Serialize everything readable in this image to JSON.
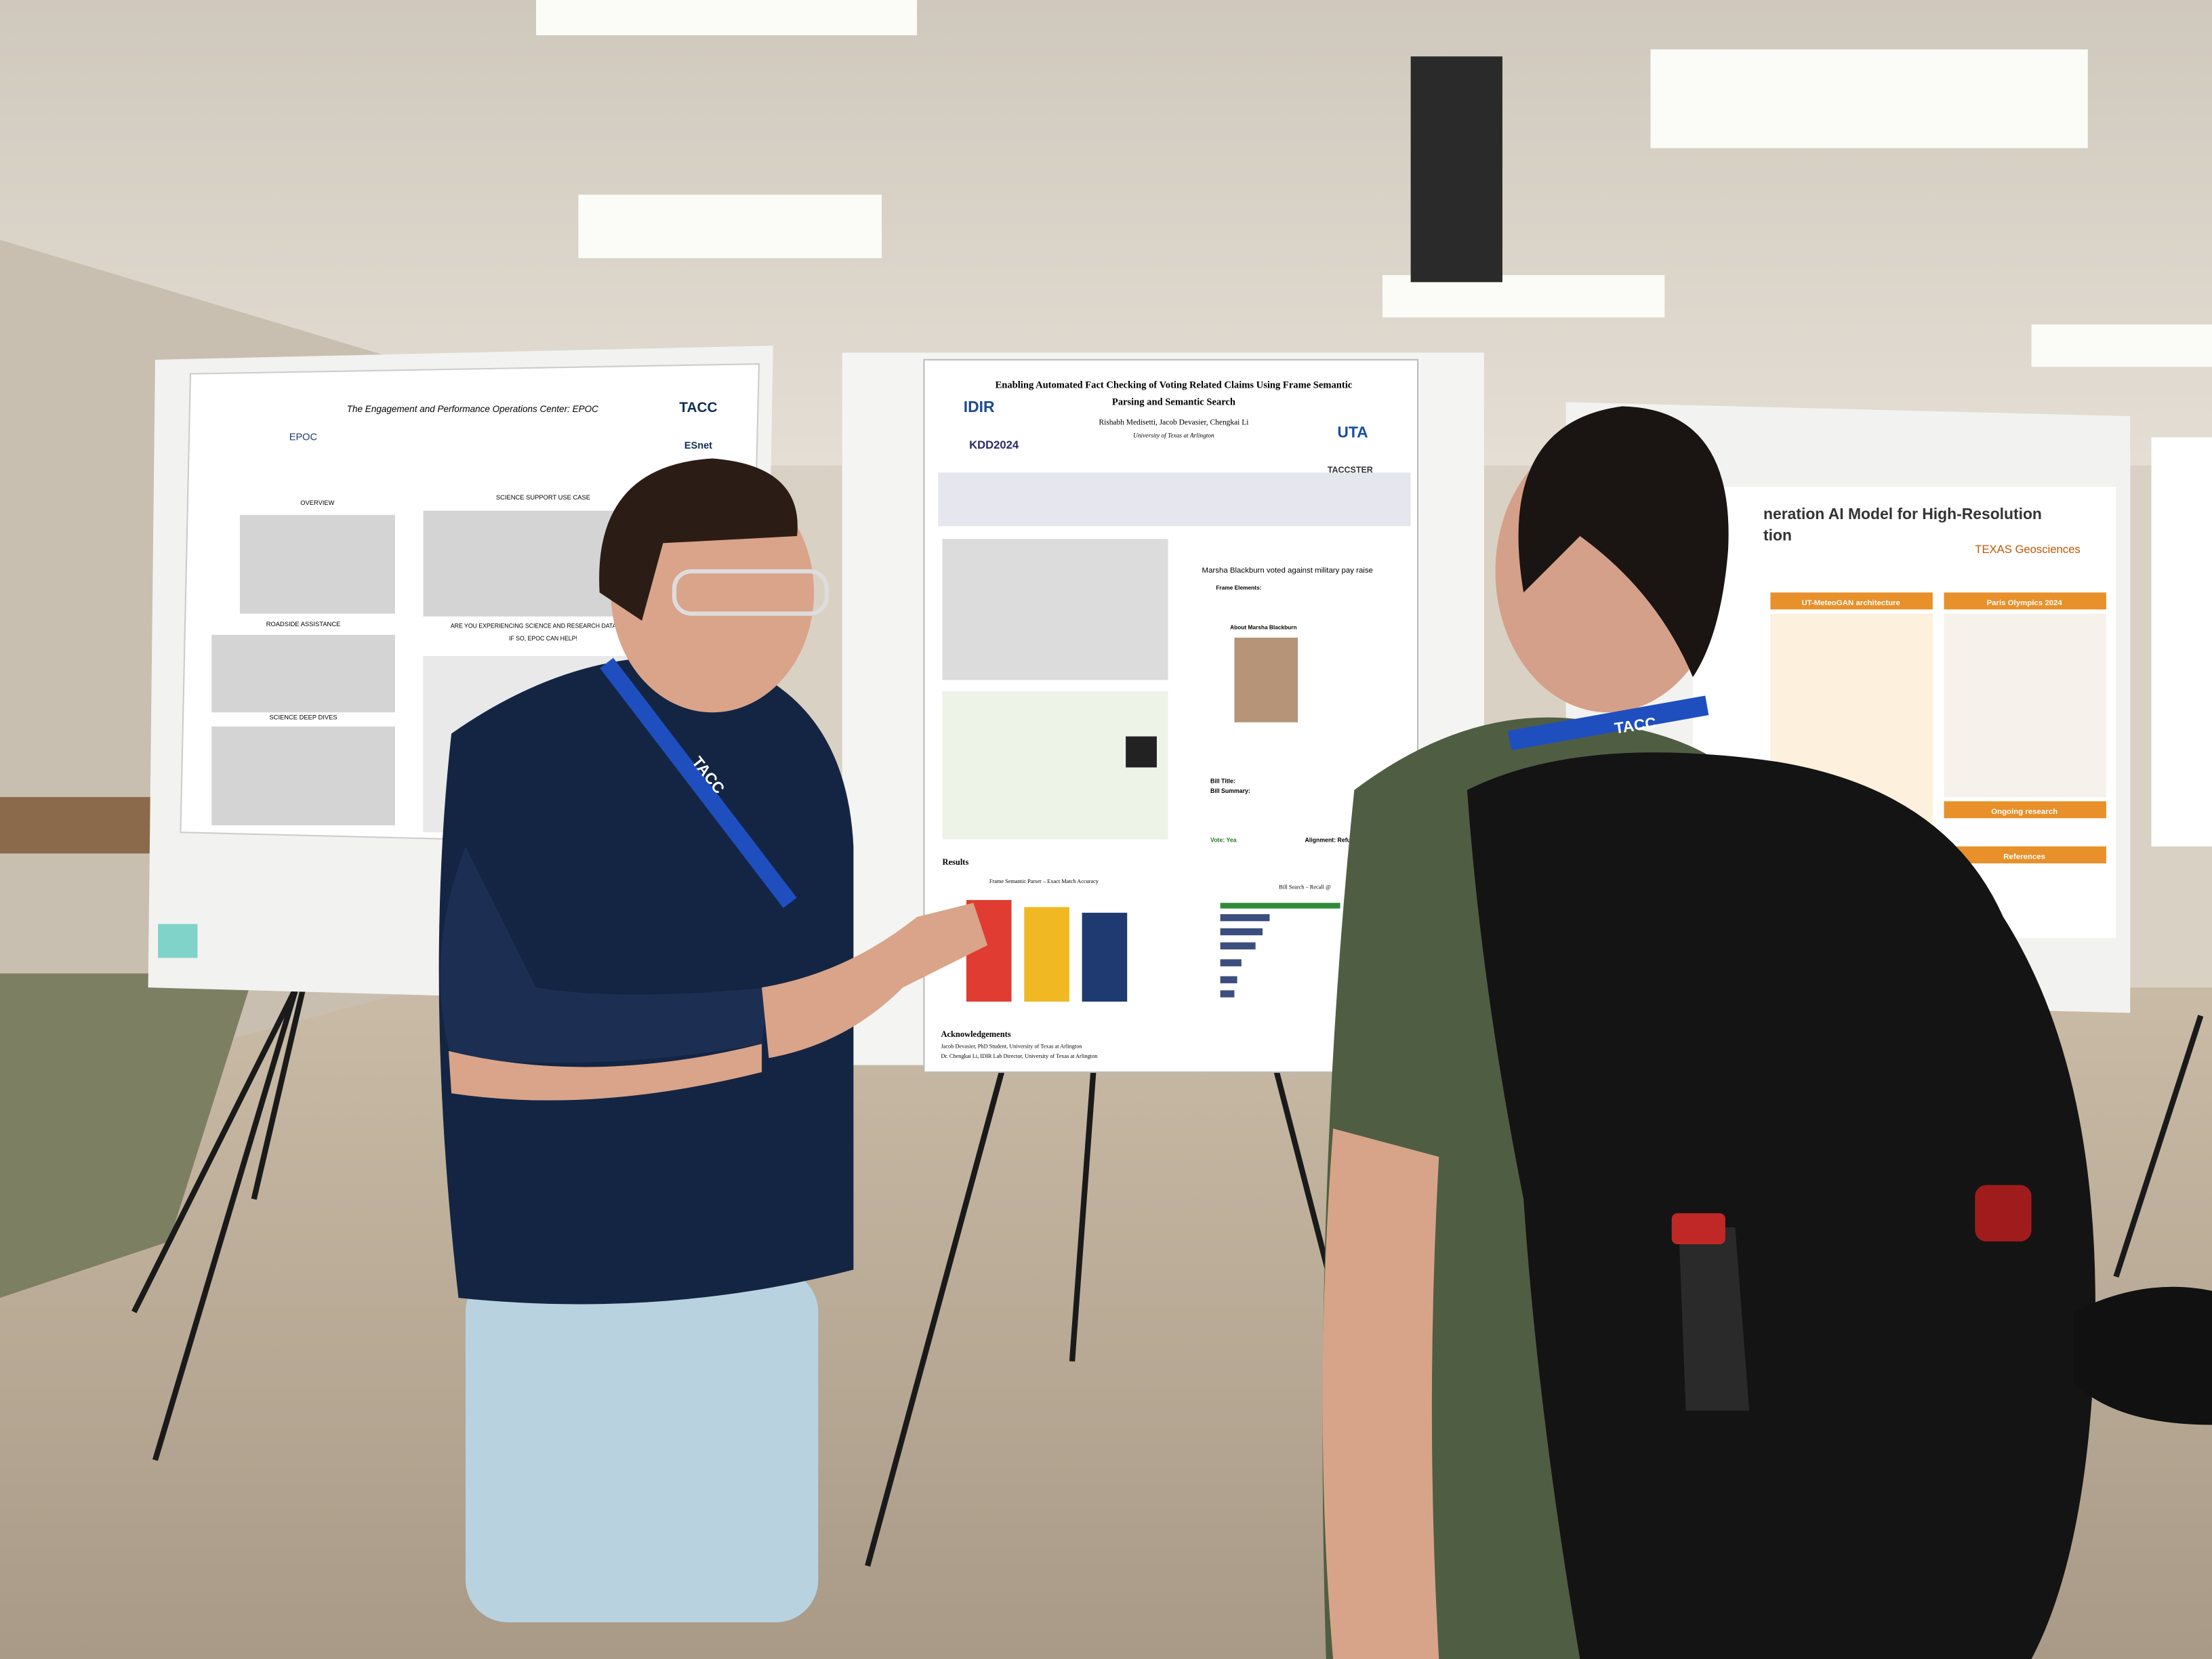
{
  "posters": {
    "left": {
      "title": "The Engagement and Performance Operations Center: EPOC",
      "logo": "TACC",
      "logo2": "ESnet",
      "logo3": "EPOC",
      "sections": [
        "OVERVIEW",
        "SCIENCE SUPPORT USE CASE",
        "ROADSIDE ASSISTANCE",
        "SCIENCE DEEP DIVES"
      ],
      "callout": [
        "ARE YOU EXPERIENCING SCIENCE AND RESEARCH DATA TRANSFER PRO",
        "IF SO, EPOC CAN HELP!"
      ]
    },
    "center": {
      "title": [
        "Enabling Automated Fact Checking of Voting Related Claims Using Frame Semantic",
        "Parsing and Semantic Search"
      ],
      "authors": "Rishabh Medisetti, Jacob Devasier, Chengkai Li",
      "affiliation": "University of Texas at Arlington",
      "logos": [
        "IDIR",
        "KDD2024",
        "UTA",
        "TACCSTER"
      ],
      "claim": "Marsha Blackburn voted against military pay raise",
      "frame_elements": "Frame Elements:",
      "about": "About Marsha Blackburn",
      "bill_title": "Bill Title:",
      "bill_summary": "Bill Summary:",
      "vote": "Vote: Yea",
      "alignment": "Alignment: Refuting",
      "results": "Results",
      "chart1": "Frame Semantic Parser – Exact Match Accuracy",
      "chart2": "Bill Search – Recall @",
      "ack_heading": "Acknowledgements",
      "ack": [
        "Jacob Devasier, PhD Student, University of Texas at Arlington",
        "Dr. Chengkai Li, IDIR Lab Director, University of Texas at Arlington"
      ]
    },
    "right": {
      "title": [
        "neration AI Model for High-Resolution",
        "tion"
      ],
      "logo": "TEXAS Geosciences",
      "sections": [
        "UT-MeteoGAN architecture",
        "Paris Olympics 2024",
        "Ongoing research",
        "References"
      ]
    }
  },
  "lanyards": [
    "TACC",
    "TACC"
  ]
}
